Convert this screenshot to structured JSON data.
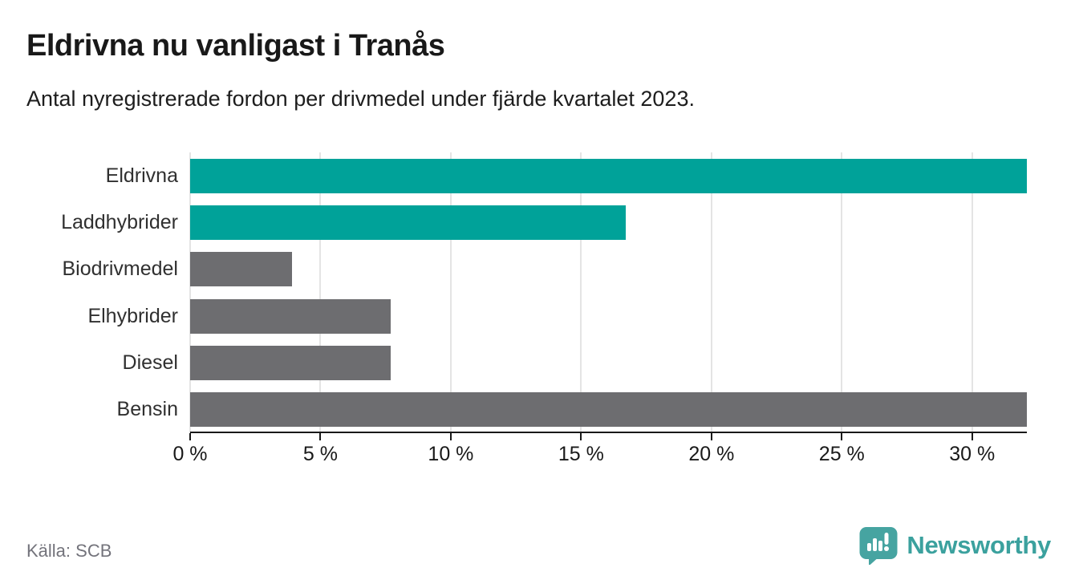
{
  "header": {
    "title": "Eldrivna nu vanligast i Tranås",
    "subtitle": "Antal nyregistrerade fordon per drivmedel under fjärde kvartalet 2023."
  },
  "footer": {
    "source": "Källa: SCB",
    "brand": "Newsworthy"
  },
  "colors": {
    "highlight_bar": "#00a299",
    "default_bar": "#6d6d70",
    "gridline": "#e4e4e4",
    "axis": "#191919",
    "brand_teal": "#3ba19e",
    "source_text": "#73737b"
  },
  "chart_data": {
    "type": "bar",
    "orientation": "horizontal",
    "title": "Eldrivna nu vanligast i Tranås",
    "subtitle": "Antal nyregistrerade fordon per drivmedel under fjärde kvartalet 2023.",
    "categories": [
      "Eldrivna",
      "Laddhybrider",
      "Biodrivmedel",
      "Elhybrider",
      "Diesel",
      "Bensin"
    ],
    "values": [
      32.1,
      16.7,
      3.9,
      7.7,
      7.7,
      32.1
    ],
    "bar_colors": [
      "#00a299",
      "#00a299",
      "#6d6d70",
      "#6d6d70",
      "#6d6d70",
      "#6d6d70"
    ],
    "unit": "%",
    "xlabel": "",
    "ylabel": "",
    "xlim": [
      0,
      32.1
    ],
    "x_ticks": [
      0,
      5,
      10,
      15,
      20,
      25,
      30
    ],
    "x_tick_labels": [
      "0 %",
      "5 %",
      "10 %",
      "15 %",
      "20 %",
      "25 %",
      "30 %"
    ],
    "grid": "vertical",
    "legend": "none"
  }
}
